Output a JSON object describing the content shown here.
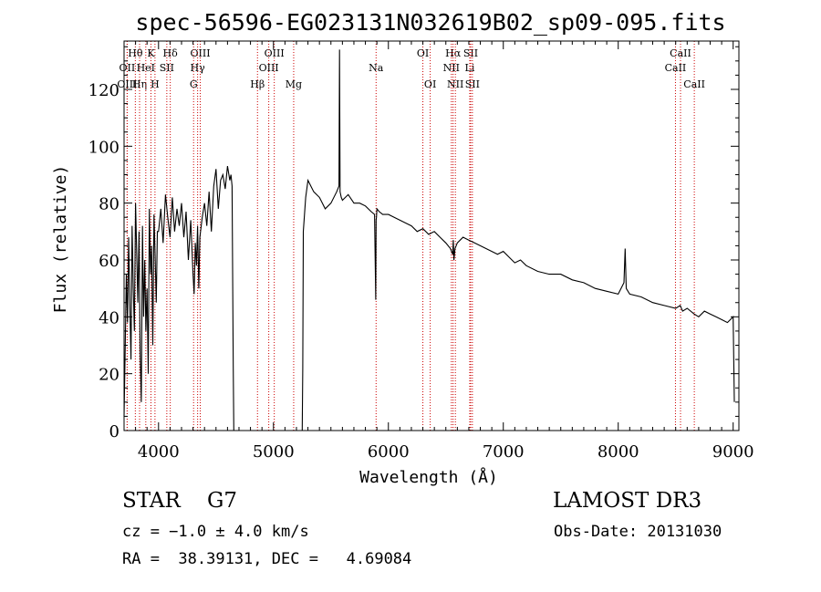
{
  "chart_data": {
    "type": "line",
    "title": "spec-56596-EG023131N032619B02_sp09-095.fits",
    "xlabel": "Wavelength (Å)",
    "ylabel": "Flux (relative)",
    "xlim": [
      3700,
      9050
    ],
    "ylim": [
      0,
      137
    ],
    "xticks": [
      4000,
      5000,
      6000,
      7000,
      8000,
      9000
    ],
    "yticks": [
      0,
      20,
      40,
      60,
      80,
      100,
      120
    ],
    "series": [
      {
        "name": "flux",
        "x": [
          3700,
          3710,
          3720,
          3730,
          3740,
          3750,
          3760,
          3770,
          3780,
          3790,
          3800,
          3810,
          3820,
          3830,
          3840,
          3850,
          3860,
          3870,
          3880,
          3890,
          3900,
          3910,
          3920,
          3930,
          3940,
          3950,
          3960,
          3970,
          3980,
          3990,
          4000,
          4020,
          4040,
          4060,
          4080,
          4100,
          4120,
          4140,
          4160,
          4180,
          4200,
          4220,
          4240,
          4260,
          4280,
          4300,
          4310,
          4320,
          4330,
          4340,
          4350,
          4360,
          4380,
          4400,
          4420,
          4440,
          4460,
          4480,
          4500,
          4520,
          4540,
          4560,
          4580,
          4600,
          4620,
          4630,
          4640,
          4650,
          4655,
          4660,
          4665,
          4670,
          4700,
          4800,
          4900,
          5000,
          5100,
          5200,
          5240,
          5250,
          5255,
          5260,
          5270,
          5280,
          5300,
          5350,
          5400,
          5450,
          5500,
          5550,
          5570,
          5575,
          5580,
          5590,
          5600,
          5650,
          5700,
          5750,
          5800,
          5850,
          5880,
          5890,
          5893,
          5896,
          5900,
          5920,
          5950,
          6000,
          6050,
          6100,
          6150,
          6200,
          6250,
          6300,
          6350,
          6400,
          6450,
          6500,
          6540,
          6560,
          6565,
          6570,
          6580,
          6600,
          6650,
          6700,
          6750,
          6800,
          6850,
          6900,
          6950,
          7000,
          7050,
          7100,
          7150,
          7200,
          7300,
          7400,
          7500,
          7600,
          7700,
          7800,
          7900,
          8000,
          8050,
          8060,
          8070,
          8100,
          8200,
          8300,
          8400,
          8500,
          8540,
          8560,
          8600,
          8660,
          8700,
          8750,
          8800,
          8850,
          8900,
          8950,
          9000,
          9010
        ],
        "y": [
          5,
          30,
          55,
          38,
          68,
          45,
          25,
          72,
          50,
          35,
          80,
          62,
          45,
          70,
          28,
          10,
          72,
          40,
          60,
          35,
          50,
          20,
          78,
          55,
          65,
          30,
          76,
          62,
          45,
          70,
          70,
          78,
          66,
          83,
          75,
          68,
          82,
          70,
          78,
          72,
          80,
          68,
          77,
          60,
          74,
          55,
          48,
          66,
          58,
          72,
          50,
          68,
          75,
          80,
          72,
          84,
          70,
          86,
          92,
          78,
          88,
          90,
          85,
          93,
          88,
          90,
          86,
          22,
          0,
          0,
          0,
          0,
          0,
          0,
          0,
          0,
          0,
          0,
          0,
          0,
          22,
          70,
          76,
          82,
          88,
          84,
          82,
          78,
          80,
          84,
          86,
          134,
          84,
          82,
          81,
          83,
          80,
          80,
          79,
          77,
          76,
          46,
          74,
          75,
          78,
          77,
          76,
          76,
          75,
          74,
          73,
          72,
          70,
          71,
          69,
          70,
          68,
          66,
          64,
          62,
          67,
          60,
          64,
          66,
          68,
          67,
          66,
          65,
          64,
          63,
          62,
          63,
          61,
          59,
          60,
          58,
          56,
          55,
          55,
          53,
          52,
          50,
          49,
          48,
          52,
          64,
          50,
          48,
          47,
          45,
          44,
          43,
          44,
          42,
          43,
          41,
          40,
          42,
          41,
          40,
          39,
          38,
          40,
          10
        ]
      }
    ],
    "lines": [
      {
        "label": "Hθ",
        "x": 3798,
        "row": 1
      },
      {
        "label": "OII",
        "x": 3727,
        "row": 2
      },
      {
        "label": "OIII",
        "x": 3727,
        "row": 3
      },
      {
        "label": "Hη",
        "x": 3835,
        "row": 3
      },
      {
        "label": "HeI",
        "x": 3889,
        "row": 2
      },
      {
        "label": "K",
        "x": 3934,
        "row": 1
      },
      {
        "label": "H",
        "x": 3969,
        "row": 3
      },
      {
        "label": "SII",
        "x": 4072,
        "row": 2
      },
      {
        "label": "Hδ",
        "x": 4102,
        "row": 1
      },
      {
        "label": "OIII",
        "x": 4363,
        "row": 1
      },
      {
        "label": "Hγ",
        "x": 4340,
        "row": 2
      },
      {
        "label": "G",
        "x": 4305,
        "row": 3
      },
      {
        "label": "Hβ",
        "x": 4861,
        "row": 3
      },
      {
        "label": "OIII",
        "x": 5007,
        "row": 1
      },
      {
        "label": "OIII",
        "x": 4959,
        "row": 2
      },
      {
        "label": "Mg",
        "x": 5176,
        "row": 3
      },
      {
        "label": "Na",
        "x": 5893,
        "row": 2
      },
      {
        "label": "OI",
        "x": 6300,
        "row": 1
      },
      {
        "label": "OI",
        "x": 6364,
        "row": 3
      },
      {
        "label": "Hα",
        "x": 6563,
        "row": 1
      },
      {
        "label": "NII",
        "x": 6548,
        "row": 2
      },
      {
        "label": "NII",
        "x": 6583,
        "row": 3
      },
      {
        "label": "SII",
        "x": 6716,
        "row": 1
      },
      {
        "label": "Li",
        "x": 6708,
        "row": 2
      },
      {
        "label": "SII",
        "x": 6731,
        "row": 3
      },
      {
        "label": "CaII",
        "x": 8542,
        "row": 1
      },
      {
        "label": "CaII",
        "x": 8498,
        "row": 2
      },
      {
        "label": "CaII",
        "x": 8662,
        "row": 3
      }
    ]
  },
  "info": {
    "object_class": "STAR",
    "subclass": "G7",
    "survey": "LAMOST DR3",
    "cz_line": "cz = −1.0 ± 4.0 km/s",
    "obs_date_line": "Obs-Date: 20131030",
    "radec_line": "RA =  38.39131, DEC =   4.69084"
  },
  "colors": {
    "spectrum": "#000000",
    "line_marker": "#cc0000",
    "axes": "#000000"
  }
}
